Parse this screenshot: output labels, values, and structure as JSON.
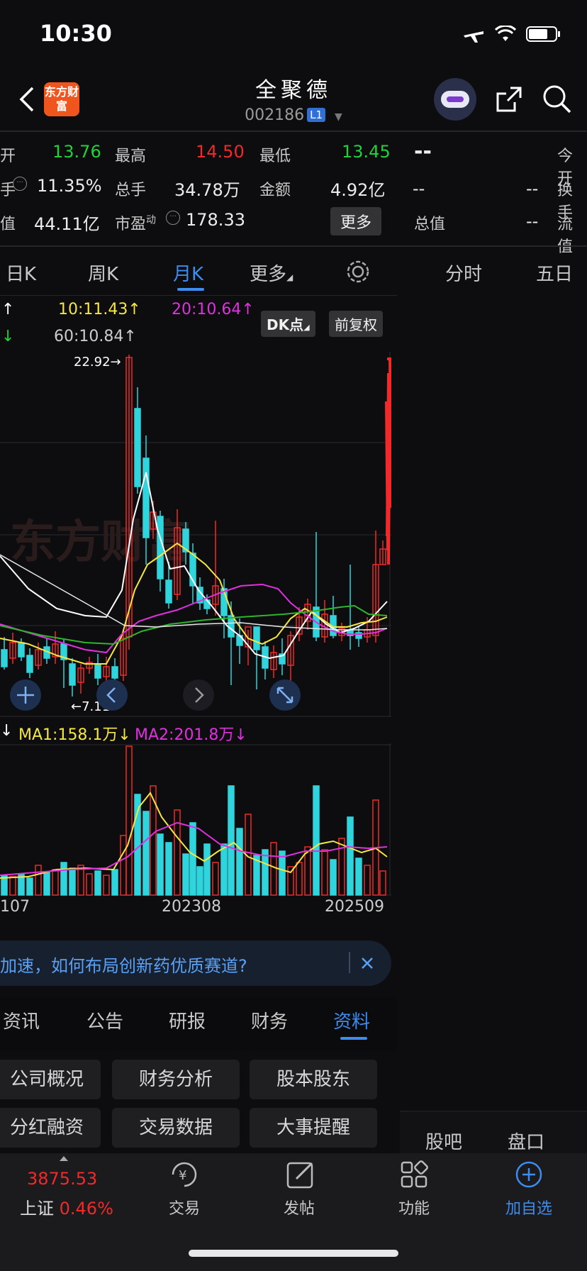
{
  "status": {
    "time": "10:30"
  },
  "header": {
    "logo_text": "东方财富",
    "title": "全聚德",
    "code": "002186",
    "level_badge": "L1"
  },
  "quote": {
    "open_label": "开",
    "open": "13.76",
    "high_label": "最高",
    "high": "14.50",
    "low_label": "最低",
    "low": "13.45",
    "turnover_label": "手",
    "turnover": "11.35%",
    "volume_label": "总手",
    "volume": "34.78万",
    "amount_label": "金额",
    "amount": "4.92亿",
    "mktcap_label": "值",
    "mktcap": "44.11亿",
    "pe_label": "市盈",
    "pe_sup": "动",
    "pe": "178.33",
    "more_button": "更多"
  },
  "right_panel": {
    "price": "--",
    "today_open_label": "今开",
    "row2_a": "--",
    "row2_b": "--",
    "turnover_label": "换手",
    "total_value_label": "总值",
    "total_value": "--",
    "float_label": "流值",
    "tabs": [
      "分时",
      "五日"
    ],
    "bottom_tabs": [
      "股吧",
      "盘口"
    ]
  },
  "period_tabs": [
    "日K",
    "周K",
    "月K",
    "更多"
  ],
  "active_period": "月K",
  "ma_legend": {
    "ma10": "10:11.43↑",
    "ma20": "20:10.64↑",
    "ma60": "60:10.84↑",
    "up_arrow": "↑",
    "down_arrow": "↓"
  },
  "chart_buttons": {
    "dk": "DK点",
    "adjust": "前复权"
  },
  "price_annotations": {
    "high": "22.92→",
    "low": "←7.11"
  },
  "watermark": "东方财富",
  "vol_legend": {
    "arrow": "↓",
    "ma1": "MA1:158.1万↓",
    "ma2": "MA2:201.8万↓"
  },
  "x_axis": [
    "107",
    "202308",
    "202509"
  ],
  "news_banner": "加速，如何布局创新药优质赛道?",
  "info_tabs": [
    "资讯",
    "公告",
    "研报",
    "财务",
    "资料"
  ],
  "active_info_tab": "资料",
  "info_buttons": [
    "公司概况",
    "财务分析",
    "股本股东",
    "分红融资",
    "交易数据",
    "大事提醒"
  ],
  "bottom_nav": {
    "index_value": "3875.53",
    "index_name": "上证",
    "index_change": "0.46%",
    "items": [
      "交易",
      "发帖",
      "功能",
      "加自选"
    ]
  },
  "colors": {
    "up": "#f02a2a",
    "down": "#2fd4dc",
    "ma_white": "#ffffff",
    "ma_yellow": "#f5e642",
    "ma_magenta": "#e030e0",
    "ma_green": "#2db52d",
    "accent": "#3d8cf0"
  }
}
